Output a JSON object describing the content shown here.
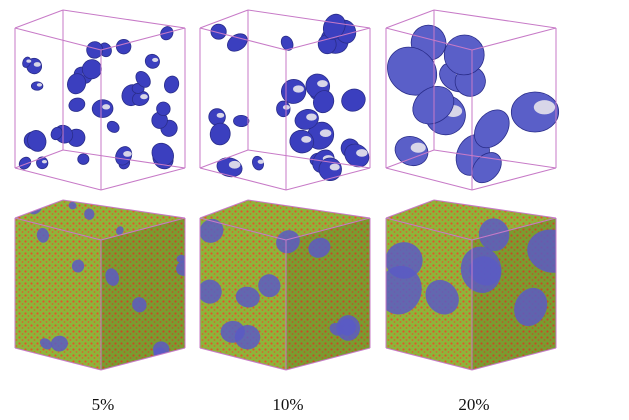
{
  "panels": [
    {
      "label": "5%"
    },
    {
      "label": "10%"
    },
    {
      "label": "20%"
    }
  ]
}
